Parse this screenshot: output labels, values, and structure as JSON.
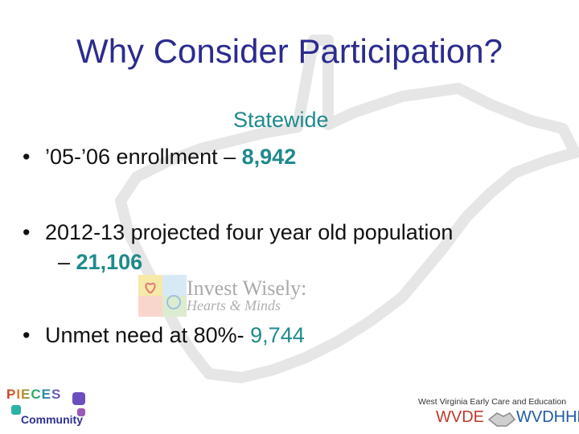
{
  "slide": {
    "title": "Why Consider Participation?",
    "subheading": "Statewide",
    "bullets": [
      {
        "text": "’05-’06 enrollment – ",
        "value": "8,942"
      },
      {
        "text": "2012-13 projected four year old population",
        "cont": "– ",
        "value": "21,106"
      },
      {
        "text": "Unmet need at 80%- ",
        "value": "9,744"
      }
    ]
  },
  "logos": {
    "invest_wisely_line1": "Invest Wisely:",
    "invest_wisely_line2": "Hearts & Minds",
    "pieces_word": "PIECES",
    "community_word": "Community",
    "footer_org": "West Virginia Early Care and Education",
    "wvde": "WVDE",
    "wvdhhr": "WVDHHR"
  },
  "colors": {
    "title": "#2b2b8f",
    "accent_teal": "#1e8a8c",
    "map_outline": "#e2e2e2"
  }
}
